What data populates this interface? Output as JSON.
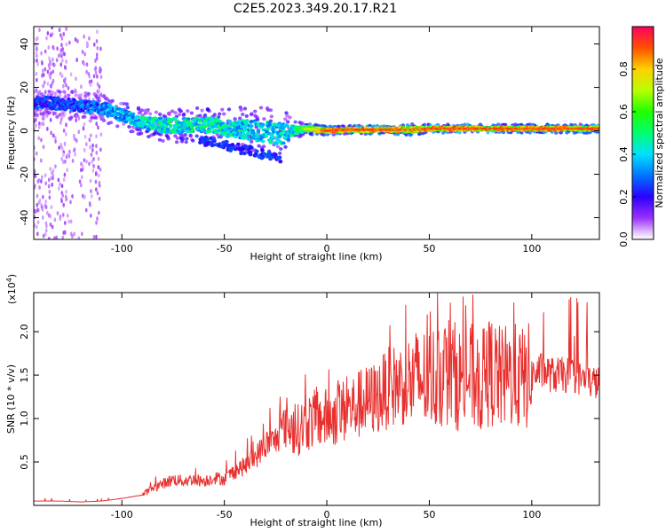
{
  "title": "C2E5.2023.349.20.17.R21",
  "chart_data": [
    {
      "type": "heatmap",
      "xlabel": "Height of straight line (km)",
      "ylabel": "Frequency (Hz)",
      "xlim": [
        -143,
        133
      ],
      "ylim": [
        -50,
        48
      ],
      "x_ticks": [
        -100,
        -50,
        0,
        50,
        100
      ],
      "y_ticks": [
        -40,
        -20,
        0,
        20,
        40
      ],
      "grid": false,
      "colorbar": {
        "label": "Normalized spectral amplitude",
        "range": [
          0,
          1
        ],
        "ticks": [
          "0.0",
          "0.2",
          "0.4",
          "0.6",
          "0.8"
        ]
      },
      "ridge": {
        "x": [
          -140,
          -130,
          -120,
          -110,
          -100,
          -90,
          -80,
          -70,
          -60,
          -50,
          -40,
          -30,
          -22,
          -15,
          -10,
          0,
          10,
          20,
          30,
          40,
          50,
          60,
          70,
          80,
          90,
          100,
          110,
          120,
          133
        ],
        "y": [
          13,
          12.5,
          11.5,
          10.5,
          7,
          3.5,
          2.5,
          2.5,
          3,
          1.5,
          0.5,
          -0.5,
          -1.5,
          0.5,
          1,
          0,
          0.5,
          0.5,
          0.5,
          0.5,
          1,
          1,
          1,
          1,
          1,
          1,
          1,
          1,
          1
        ],
        "amplitude": [
          0.3,
          0.3,
          0.35,
          0.4,
          0.45,
          0.5,
          0.55,
          0.55,
          0.55,
          0.55,
          0.5,
          0.5,
          0.5,
          0.6,
          0.75,
          0.95,
          0.95,
          0.95,
          0.95,
          0.9,
          0.95,
          0.95,
          0.95,
          0.95,
          0.95,
          0.95,
          0.95,
          0.95,
          0.95
        ],
        "spread": [
          5,
          5,
          5,
          5,
          5,
          5,
          6,
          6,
          6,
          7,
          8,
          9,
          9,
          3,
          2,
          1.5,
          1.5,
          1.5,
          1.5,
          2,
          1.5,
          1.5,
          1.5,
          1.5,
          1.5,
          1.5,
          1.5,
          1.5,
          1.5
        ]
      }
    },
    {
      "type": "line",
      "xlabel": "Height of straight line (km)",
      "ylabel": "SNR (10 * v/v)",
      "y_multiplier": "(x10",
      "y_multiplier_exp": "4",
      "y_multiplier_close": ")",
      "xlim": [
        -143,
        133
      ],
      "ylim": [
        0,
        2.45
      ],
      "x_ticks": [
        -100,
        -50,
        0,
        50,
        100
      ],
      "y_ticks": [
        0.5,
        1.0,
        1.5,
        2.0
      ],
      "series": [
        {
          "color": "#e8302e",
          "x": [
            -143,
            -130,
            -120,
            -110,
            -100,
            -90,
            -85,
            -80,
            -75,
            -70,
            -65,
            -60,
            -55,
            -50,
            -45,
            -40,
            -35,
            -30,
            -25,
            -20,
            -15,
            -10,
            -5,
            0,
            5,
            10,
            15,
            20,
            25,
            30,
            35,
            40,
            45,
            50,
            55,
            60,
            65,
            70,
            75,
            80,
            85,
            90,
            95,
            100,
            105,
            110,
            115,
            120,
            125,
            133
          ],
          "y": [
            0.05,
            0.05,
            0.04,
            0.05,
            0.08,
            0.12,
            0.2,
            0.25,
            0.3,
            0.28,
            0.3,
            0.28,
            0.32,
            0.3,
            0.4,
            0.45,
            0.55,
            0.7,
            0.75,
            0.95,
            0.85,
            0.95,
            1.0,
            1.0,
            1.05,
            1.1,
            1.15,
            1.2,
            1.25,
            1.35,
            1.4,
            1.4,
            1.45,
            1.45,
            1.5,
            1.55,
            1.45,
            1.5,
            1.4,
            1.55,
            1.45,
            1.5,
            1.45,
            1.5,
            1.55,
            1.5,
            1.5,
            1.5,
            1.45,
            1.4
          ]
        }
      ]
    }
  ]
}
